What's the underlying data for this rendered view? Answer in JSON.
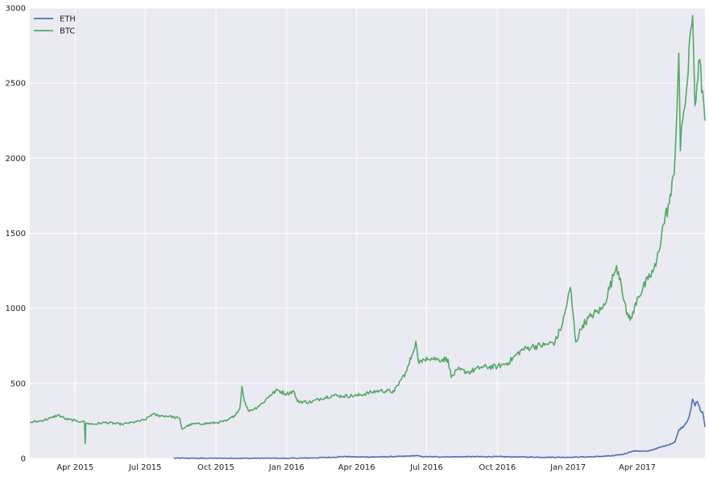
{
  "chart_data": {
    "type": "line",
    "title": "",
    "xlabel": "",
    "ylabel": "",
    "xlim": [
      "2015-02-01",
      "2017-06-28"
    ],
    "ylim": [
      0,
      3000
    ],
    "grid": true,
    "legend_position": "top-left",
    "x_ticks": [
      {
        "date": "2015-04-01",
        "label": "Apr 2015"
      },
      {
        "date": "2015-07-01",
        "label": "Jul 2015"
      },
      {
        "date": "2015-10-01",
        "label": "Oct 2015"
      },
      {
        "date": "2016-01-01",
        "label": "Jan 2016"
      },
      {
        "date": "2016-04-01",
        "label": "Apr 2016"
      },
      {
        "date": "2016-07-01",
        "label": "Jul 2016"
      },
      {
        "date": "2016-10-01",
        "label": "Oct 2016"
      },
      {
        "date": "2017-01-01",
        "label": "Jan 2017"
      },
      {
        "date": "2017-04-01",
        "label": "Apr 2017"
      }
    ],
    "y_ticks": [
      0,
      500,
      1000,
      1500,
      2000,
      2500,
      3000
    ],
    "series": [
      {
        "name": "ETH",
        "color": "#4c72b0",
        "points": [
          [
            "2015-08-07",
            2
          ],
          [
            "2015-09-01",
            1
          ],
          [
            "2015-10-01",
            1
          ],
          [
            "2015-11-01",
            1
          ],
          [
            "2015-12-01",
            1
          ],
          [
            "2016-01-01",
            1
          ],
          [
            "2016-02-01",
            3
          ],
          [
            "2016-03-01",
            8
          ],
          [
            "2016-03-15",
            13
          ],
          [
            "2016-04-01",
            10
          ],
          [
            "2016-05-01",
            10
          ],
          [
            "2016-06-01",
            14
          ],
          [
            "2016-06-17",
            19
          ],
          [
            "2016-06-25",
            12
          ],
          [
            "2016-07-15",
            11
          ],
          [
            "2016-08-01",
            11
          ],
          [
            "2016-09-01",
            12
          ],
          [
            "2016-10-01",
            12
          ],
          [
            "2016-11-01",
            10
          ],
          [
            "2016-12-01",
            8
          ],
          [
            "2017-01-01",
            8
          ],
          [
            "2017-02-01",
            11
          ],
          [
            "2017-03-01",
            18
          ],
          [
            "2017-03-15",
            30
          ],
          [
            "2017-03-25",
            48
          ],
          [
            "2017-04-01",
            50
          ],
          [
            "2017-04-15",
            48
          ],
          [
            "2017-05-01",
            75
          ],
          [
            "2017-05-10",
            88
          ],
          [
            "2017-05-20",
            110
          ],
          [
            "2017-05-25",
            190
          ],
          [
            "2017-06-01",
            220
          ],
          [
            "2017-06-06",
            260
          ],
          [
            "2017-06-10",
            335
          ],
          [
            "2017-06-12",
            395
          ],
          [
            "2017-06-15",
            350
          ],
          [
            "2017-06-18",
            380
          ],
          [
            "2017-06-22",
            320
          ],
          [
            "2017-06-25",
            310
          ],
          [
            "2017-06-28",
            210
          ]
        ]
      },
      {
        "name": "BTC",
        "color": "#55a868",
        "points": [
          [
            "2015-02-01",
            240
          ],
          [
            "2015-02-15",
            250
          ],
          [
            "2015-03-01",
            270
          ],
          [
            "2015-03-10",
            290
          ],
          [
            "2015-03-20",
            262
          ],
          [
            "2015-04-01",
            252
          ],
          [
            "2015-04-10",
            245
          ],
          [
            "2015-04-13",
            245
          ],
          [
            "2015-04-14",
            100
          ],
          [
            "2015-04-15",
            235
          ],
          [
            "2015-04-25",
            228
          ],
          [
            "2015-05-10",
            240
          ],
          [
            "2015-06-01",
            228
          ],
          [
            "2015-06-20",
            245
          ],
          [
            "2015-07-01",
            258
          ],
          [
            "2015-07-10",
            295
          ],
          [
            "2015-07-20",
            285
          ],
          [
            "2015-08-01",
            282
          ],
          [
            "2015-08-15",
            265
          ],
          [
            "2015-08-18",
            195
          ],
          [
            "2015-08-24",
            215
          ],
          [
            "2015-09-01",
            230
          ],
          [
            "2015-09-15",
            232
          ],
          [
            "2015-10-01",
            238
          ],
          [
            "2015-10-15",
            250
          ],
          [
            "2015-10-25",
            285
          ],
          [
            "2015-11-01",
            330
          ],
          [
            "2015-11-04",
            480
          ],
          [
            "2015-11-07",
            380
          ],
          [
            "2015-11-12",
            320
          ],
          [
            "2015-11-20",
            330
          ],
          [
            "2015-12-01",
            370
          ],
          [
            "2015-12-10",
            420
          ],
          [
            "2015-12-20",
            455
          ],
          [
            "2016-01-01",
            430
          ],
          [
            "2016-01-10",
            450
          ],
          [
            "2016-01-15",
            380
          ],
          [
            "2016-02-01",
            375
          ],
          [
            "2016-02-15",
            400
          ],
          [
            "2016-03-01",
            420
          ],
          [
            "2016-03-15",
            415
          ],
          [
            "2016-04-01",
            418
          ],
          [
            "2016-04-20",
            440
          ],
          [
            "2016-05-01",
            452
          ],
          [
            "2016-05-20",
            445
          ],
          [
            "2016-05-28",
            520
          ],
          [
            "2016-06-05",
            580
          ],
          [
            "2016-06-12",
            690
          ],
          [
            "2016-06-17",
            780
          ],
          [
            "2016-06-20",
            650
          ],
          [
            "2016-06-25",
            640
          ],
          [
            "2016-07-01",
            675
          ],
          [
            "2016-07-15",
            660
          ],
          [
            "2016-07-29",
            660
          ],
          [
            "2016-08-02",
            540
          ],
          [
            "2016-08-10",
            590
          ],
          [
            "2016-08-25",
            575
          ],
          [
            "2016-09-10",
            608
          ],
          [
            "2016-10-01",
            612
          ],
          [
            "2016-10-15",
            638
          ],
          [
            "2016-11-01",
            720
          ],
          [
            "2016-11-15",
            745
          ],
          [
            "2016-12-01",
            755
          ],
          [
            "2016-12-15",
            775
          ],
          [
            "2016-12-25",
            900
          ],
          [
            "2017-01-04",
            1140
          ],
          [
            "2017-01-11",
            775
          ],
          [
            "2017-01-20",
            890
          ],
          [
            "2017-02-01",
            955
          ],
          [
            "2017-02-15",
            1000
          ],
          [
            "2017-03-01",
            1215
          ],
          [
            "2017-03-05",
            1285
          ],
          [
            "2017-03-10",
            1200
          ],
          [
            "2017-03-18",
            960
          ],
          [
            "2017-03-25",
            935
          ],
          [
            "2017-04-01",
            1070
          ],
          [
            "2017-04-15",
            1190
          ],
          [
            "2017-04-25",
            1280
          ],
          [
            "2017-05-05",
            1560
          ],
          [
            "2017-05-15",
            1750
          ],
          [
            "2017-05-20",
            2000
          ],
          [
            "2017-05-25",
            2700
          ],
          [
            "2017-05-27",
            2050
          ],
          [
            "2017-05-30",
            2250
          ],
          [
            "2017-06-05",
            2500
          ],
          [
            "2017-06-10",
            2870
          ],
          [
            "2017-06-12",
            2950
          ],
          [
            "2017-06-15",
            2350
          ],
          [
            "2017-06-20",
            2650
          ],
          [
            "2017-06-25",
            2450
          ],
          [
            "2017-06-28",
            2250
          ]
        ]
      }
    ]
  }
}
